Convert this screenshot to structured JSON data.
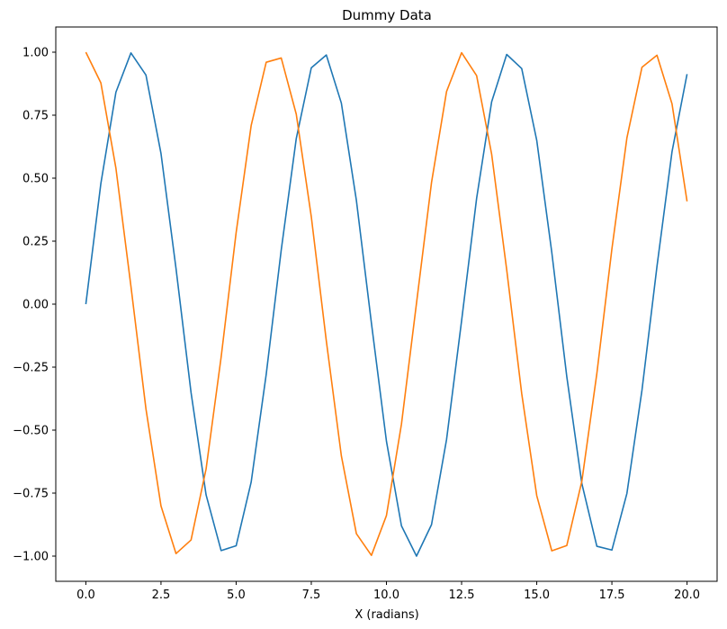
{
  "chart_data": {
    "type": "line",
    "title": "Dummy Data",
    "xlabel": "X (radians)",
    "ylabel": "",
    "xlim": [
      -1.0,
      21.0
    ],
    "ylim": [
      -1.1,
      1.1
    ],
    "grid": false,
    "legend": "none",
    "xticks": [
      0.0,
      2.5,
      5.0,
      7.5,
      10.0,
      12.5,
      15.0,
      17.5,
      20.0
    ],
    "xtick_labels": [
      "0.0",
      "2.5",
      "5.0",
      "7.5",
      "10.0",
      "12.5",
      "15.0",
      "17.5",
      "20.0"
    ],
    "yticks": [
      1.0,
      0.75,
      0.5,
      0.25,
      0.0,
      -0.25,
      -0.5,
      -0.75,
      -1.0
    ],
    "ytick_labels": [
      "1.00",
      "0.75",
      "0.50",
      "0.25",
      "0.00",
      "−0.25",
      "−0.50",
      "−0.75",
      "−1.00"
    ],
    "series": [
      {
        "color": "#1f77b4",
        "x": [
          0.0,
          0.5,
          1.0,
          1.5,
          2.0,
          2.5,
          3.0,
          3.5,
          4.0,
          4.5,
          5.0,
          5.5,
          6.0,
          6.5,
          7.0,
          7.5,
          8.0,
          8.5,
          9.0,
          9.5,
          10.0,
          10.5,
          11.0,
          11.5,
          12.0,
          12.5,
          13.0,
          13.5,
          14.0,
          14.5,
          15.0,
          15.5,
          16.0,
          16.5,
          17.0,
          17.5,
          18.0,
          18.5,
          19.0,
          19.5,
          20.0
        ],
        "y": [
          0.0,
          0.479,
          0.841,
          0.997,
          0.909,
          0.598,
          0.141,
          -0.351,
          -0.757,
          -0.978,
          -0.959,
          -0.706,
          -0.279,
          0.215,
          0.657,
          0.938,
          0.989,
          0.798,
          0.412,
          -0.075,
          -0.544,
          -0.88,
          -1.0,
          -0.875,
          -0.537,
          -0.066,
          0.42,
          0.803,
          0.991,
          0.935,
          0.65,
          0.206,
          -0.288,
          -0.712,
          -0.961,
          -0.976,
          -0.751,
          -0.342,
          0.15,
          0.605,
          0.913
        ]
      },
      {
        "color": "#ff7f0e",
        "x": [
          0.0,
          0.5,
          1.0,
          1.5,
          2.0,
          2.5,
          3.0,
          3.5,
          4.0,
          4.5,
          5.0,
          5.5,
          6.0,
          6.5,
          7.0,
          7.5,
          8.0,
          8.5,
          9.0,
          9.5,
          10.0,
          10.5,
          11.0,
          11.5,
          12.0,
          12.5,
          13.0,
          13.5,
          14.0,
          14.5,
          15.0,
          15.5,
          16.0,
          16.5,
          17.0,
          17.5,
          18.0,
          18.5,
          19.0,
          19.5,
          20.0
        ],
        "y": [
          1.0,
          0.878,
          0.54,
          0.071,
          -0.416,
          -0.801,
          -0.99,
          -0.936,
          -0.654,
          -0.211,
          0.284,
          0.709,
          0.96,
          0.977,
          0.754,
          0.347,
          -0.146,
          -0.602,
          -0.911,
          -0.997,
          -0.839,
          -0.476,
          0.004,
          0.483,
          0.844,
          0.998,
          0.907,
          0.595,
          0.137,
          -0.355,
          -0.76,
          -0.979,
          -0.958,
          -0.703,
          -0.275,
          0.219,
          0.66,
          0.94,
          0.988,
          0.795,
          0.408
        ]
      }
    ]
  }
}
